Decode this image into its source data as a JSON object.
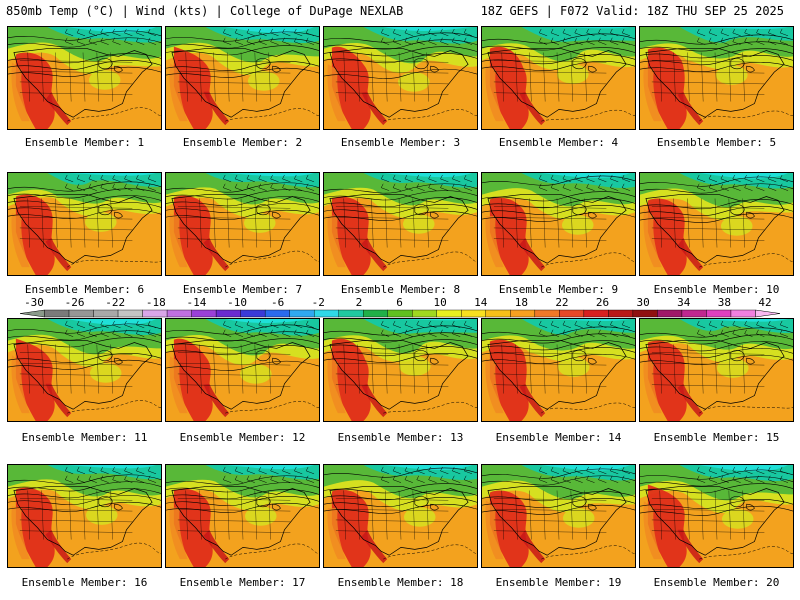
{
  "header": {
    "left": "850mb Temp (°C) | Wind (kts) | College of DuPage NEXLAB",
    "right": "18Z GEFS | F072 Valid: 18Z THU SEP 25 2025"
  },
  "members": [
    {
      "label": "Ensemble Member: 1"
    },
    {
      "label": "Ensemble Member: 2"
    },
    {
      "label": "Ensemble Member: 3"
    },
    {
      "label": "Ensemble Member: 4"
    },
    {
      "label": "Ensemble Member: 5"
    },
    {
      "label": "Ensemble Member: 6"
    },
    {
      "label": "Ensemble Member: 7"
    },
    {
      "label": "Ensemble Member: 8"
    },
    {
      "label": "Ensemble Member: 9"
    },
    {
      "label": "Ensemble Member: 10"
    },
    {
      "label": "Ensemble Member: 11"
    },
    {
      "label": "Ensemble Member: 12"
    },
    {
      "label": "Ensemble Member: 13"
    },
    {
      "label": "Ensemble Member: 14"
    },
    {
      "label": "Ensemble Member: 15"
    },
    {
      "label": "Ensemble Member: 16"
    },
    {
      "label": "Ensemble Member: 17"
    },
    {
      "label": "Ensemble Member: 18"
    },
    {
      "label": "Ensemble Member: 19"
    },
    {
      "label": "Ensemble Member: 20"
    }
  ],
  "colorbar": {
    "labels": [
      "-30",
      "-26",
      "-22",
      "-18",
      "-14",
      "-10",
      "-6",
      "-2",
      "2",
      "6",
      "10",
      "14",
      "18",
      "22",
      "26",
      "30",
      "34",
      "38",
      "42"
    ],
    "colors": [
      "#8a9a8a",
      "#7a7a7a",
      "#969696",
      "#a8a8a8",
      "#c4c4c4",
      "#d9a6e8",
      "#c070e0",
      "#9a40d8",
      "#6a2ad0",
      "#3a3ad8",
      "#2a6aee",
      "#30a8f0",
      "#30d8e8",
      "#20c8a0",
      "#20b048",
      "#60c020",
      "#a0d820",
      "#e8f020",
      "#f8e020",
      "#f8c018",
      "#f8a020",
      "#f07828",
      "#e84828",
      "#d82020",
      "#b81818",
      "#901010",
      "#a01868",
      "#c02890",
      "#e040c0",
      "#f080e0",
      "#f8b8f0"
    ]
  },
  "map_colors": {
    "hot": "#e02a1a",
    "warm": "#f08a20",
    "mild": "#f3a21e",
    "yellow": "#d6e020",
    "green": "#58b838",
    "cool": "#18c8a0",
    "cold": "#20e0d8"
  }
}
